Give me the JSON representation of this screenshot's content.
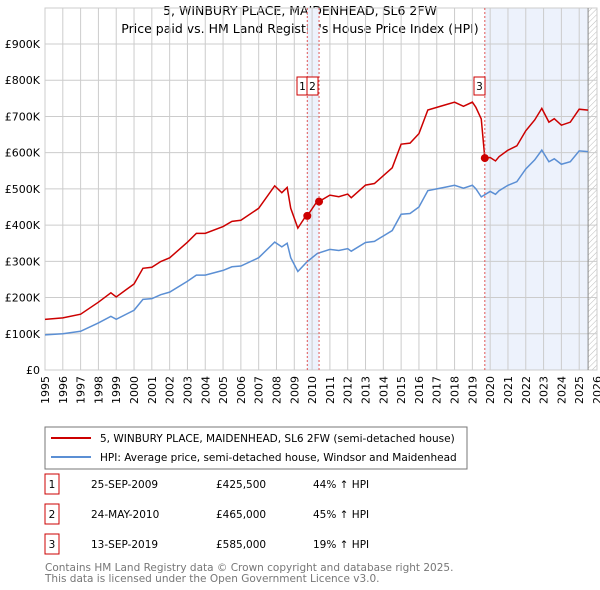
{
  "chart_data": {
    "type": "line",
    "title": "5, WINBURY PLACE, MAIDENHEAD, SL6 2FW",
    "subtitle": "Price paid vs. HM Land Registry's House Price Index (HPI)",
    "xlim": [
      1995,
      2026
    ],
    "ylim": [
      0,
      900000
    ],
    "y_ticks": [
      {
        "v": 0,
        "label": "£0"
      },
      {
        "v": 100000,
        "label": "£100K"
      },
      {
        "v": 200000,
        "label": "£200K"
      },
      {
        "v": 300000,
        "label": "£300K"
      },
      {
        "v": 400000,
        "label": "£400K"
      },
      {
        "v": 500000,
        "label": "£500K"
      },
      {
        "v": 600000,
        "label": "£600K"
      },
      {
        "v": 700000,
        "label": "£700K"
      },
      {
        "v": 800000,
        "label": "£800K"
      },
      {
        "v": 900000,
        "label": "£900K"
      }
    ],
    "x_ticks": [
      "1995",
      "1996",
      "1997",
      "1998",
      "1999",
      "2000",
      "2001",
      "2002",
      "2003",
      "2004",
      "2005",
      "2006",
      "2007",
      "2008",
      "2009",
      "2010",
      "2011",
      "2012",
      "2013",
      "2014",
      "2015",
      "2016",
      "2017",
      "2018",
      "2019",
      "2020",
      "2021",
      "2022",
      "2023",
      "2024",
      "2025",
      "2026"
    ],
    "grid": true,
    "shaded_periods": [
      [
        2009.73,
        2010.39
      ],
      [
        2019.7,
        2025.5
      ]
    ],
    "hatched_from": 2025.5,
    "hpi_series": {
      "name": "HPI: Average price, semi-detached house, Windsor and Maidenhead",
      "color": "#5b8fd4",
      "x": [
        1995,
        1996,
        1997,
        1998,
        1998.7,
        1999,
        2000,
        2000.5,
        2001,
        2001.5,
        2002,
        2003,
        2003.5,
        2004,
        2005,
        2005.5,
        2006,
        2007,
        2007.9,
        2008.3,
        2008.6,
        2008.8,
        2009.2,
        2009.7,
        2010.3,
        2011,
        2011.5,
        2012,
        2012.2,
        2013,
        2013.5,
        2014,
        2014.5,
        2015,
        2015.5,
        2016,
        2016.5,
        2017,
        2017.5,
        2018,
        2018.5,
        2019,
        2019.2,
        2019.5,
        2020,
        2020.3,
        2020.5,
        2021,
        2021.5,
        2022,
        2022.5,
        2022.9,
        2023.3,
        2023.6,
        2024,
        2024.5,
        2025,
        2025.5
      ],
      "y": [
        97,
        100,
        107,
        130,
        148,
        140,
        165,
        195,
        197,
        208,
        215,
        245,
        262,
        262,
        275,
        285,
        287,
        310,
        353,
        340,
        350,
        310,
        272,
        298,
        322,
        333,
        330,
        335,
        328,
        352,
        355,
        370,
        385,
        430,
        432,
        450,
        495,
        500,
        505,
        510,
        502,
        510,
        500,
        478,
        493,
        485,
        495,
        510,
        520,
        555,
        580,
        607,
        575,
        583,
        568,
        575,
        605,
        603
      ]
    },
    "price_series": {
      "name": "5, WINBURY PLACE, MAIDENHEAD, SL6 2FW (semi-detached house)",
      "color": "#cc0000",
      "ratios": [
        {
          "until": 2009.73,
          "r": 1.44
        },
        {
          "until": 2019.7,
          "r": 1.45
        },
        {
          "until": 2026,
          "r": 1.19
        }
      ]
    },
    "sales": [
      {
        "n": "1",
        "x": 2009.73,
        "date": "25-SEP-2009",
        "price": 425500,
        "price_label": "£425,500",
        "hpi": "44% ↑ HPI"
      },
      {
        "n": "2",
        "x": 2010.39,
        "date": "24-MAY-2010",
        "price": 465000,
        "price_label": "£465,000",
        "hpi": "45% ↑ HPI"
      },
      {
        "n": "3",
        "x": 2019.7,
        "date": "13-SEP-2019",
        "price": 585000,
        "price_label": "£585,000",
        "hpi": "19% ↑ HPI"
      }
    ]
  },
  "legend": {
    "red": "5, WINBURY PLACE, MAIDENHEAD, SL6 2FW (semi-detached house)",
    "blue": "HPI: Average price, semi-detached house, Windsor and Maidenhead"
  },
  "footer": {
    "line1": "Contains HM Land Registry data © Crown copyright and database right 2025.",
    "line2": "This data is licensed under the Open Government Licence v3.0."
  }
}
